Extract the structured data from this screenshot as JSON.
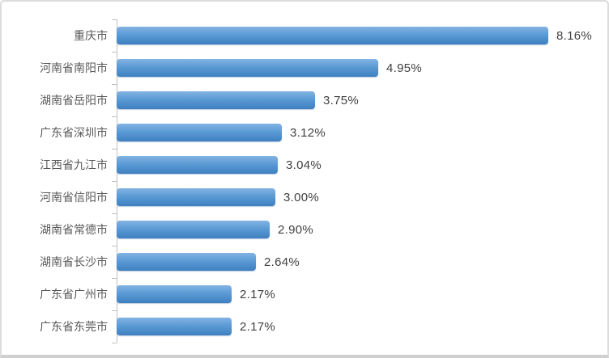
{
  "chart_data": {
    "type": "bar",
    "orientation": "horizontal",
    "title": "",
    "xlabel": "",
    "ylabel": "",
    "categories": [
      "重庆市",
      "河南省南阳市",
      "湖南省岳阳市",
      "广东省深圳市",
      "江西省九江市",
      "河南省信阳市",
      "湖南省常德市",
      "湖南省长沙市",
      "广东省广州市",
      "广东省东莞市"
    ],
    "values": [
      8.16,
      4.95,
      3.75,
      3.12,
      3.04,
      3.0,
      2.9,
      2.64,
      2.17,
      2.17
    ],
    "value_labels": [
      "8.16%",
      "4.95%",
      "3.75%",
      "3.12%",
      "3.04%",
      "3.00%",
      "2.90%",
      "2.64%",
      "2.17%",
      "2.17%"
    ],
    "xlim": [
      0,
      9
    ],
    "grid": false,
    "legend": false,
    "data_labels_position": "outside-end",
    "bar_color": "#5B9BD5",
    "bar_gradient_top": "#83B3E3",
    "bar_gradient_bottom": "#3E7FC0",
    "axis_color": "#BFBFBF",
    "category_label_color": "#595959",
    "value_label_color": "#404040",
    "background_color": "#FFFFFF",
    "frame_border_color": "#DCDCDC"
  }
}
